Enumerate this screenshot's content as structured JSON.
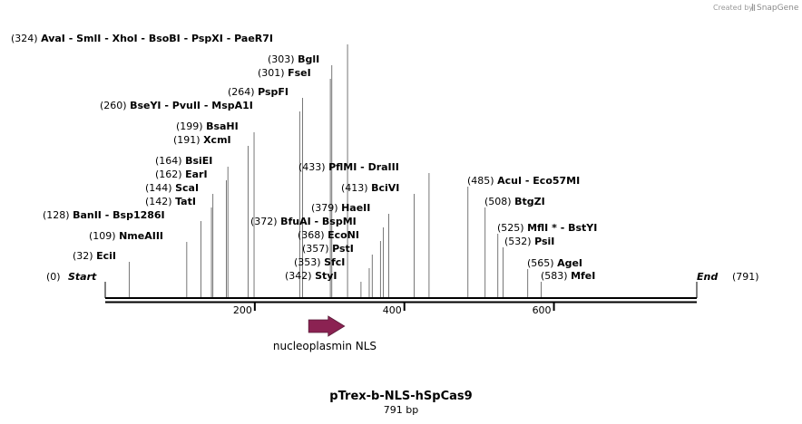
{
  "credit": {
    "prefix": "Created by",
    "brand": "SnapGene"
  },
  "map": {
    "name": "pTrex-b-NLS-hSpCas9",
    "length_label": "791 bp",
    "bp": 791,
    "start_label": "Start",
    "end_label": "End",
    "start_pos": "(0)",
    "end_pos": "(791)",
    "ticks": [
      {
        "bp": 200,
        "label": "200"
      },
      {
        "bp": 400,
        "label": "400"
      },
      {
        "bp": 600,
        "label": "600"
      }
    ],
    "feature": {
      "name": "nucleoplasmin NLS",
      "start_bp": 272,
      "end_bp": 320,
      "color": "#8b2252"
    },
    "sites": [
      {
        "pos": "(324)",
        "names": [
          "AvaI",
          "SmlI",
          "XhoI",
          "BsoBI",
          "PspXI",
          "PaeR7I"
        ],
        "bp": 324
      },
      {
        "pos": "(303)",
        "names": [
          "BglI"
        ],
        "bp": 303
      },
      {
        "pos": "(301)",
        "names": [
          "FseI"
        ],
        "bp": 301
      },
      {
        "pos": "(264)",
        "names": [
          "PspFI"
        ],
        "bp": 264
      },
      {
        "pos": "(260)",
        "names": [
          "BseYI",
          "PvuII",
          "MspA1I"
        ],
        "bp": 260
      },
      {
        "pos": "(199)",
        "names": [
          "BsaHI"
        ],
        "bp": 199
      },
      {
        "pos": "(191)",
        "names": [
          "XcmI"
        ],
        "bp": 191
      },
      {
        "pos": "(164)",
        "names": [
          "BsiEI"
        ],
        "bp": 164
      },
      {
        "pos": "(162)",
        "names": [
          "EarI"
        ],
        "bp": 162
      },
      {
        "pos": "(144)",
        "names": [
          "ScaI"
        ],
        "bp": 144
      },
      {
        "pos": "(142)",
        "names": [
          "TatI"
        ],
        "bp": 142
      },
      {
        "pos": "(128)",
        "names": [
          "BanII",
          "Bsp1286I"
        ],
        "bp": 128
      },
      {
        "pos": "(109)",
        "names": [
          "NmeAIII"
        ],
        "bp": 109
      },
      {
        "pos": "(32)",
        "names": [
          "EciI"
        ],
        "bp": 32
      },
      {
        "pos": "(433)",
        "names": [
          "PflMI",
          "DraIII"
        ],
        "bp": 433
      },
      {
        "pos": "(413)",
        "names": [
          "BciVI"
        ],
        "bp": 413
      },
      {
        "pos": "(379)",
        "names": [
          "HaeII"
        ],
        "bp": 379
      },
      {
        "pos": "(372)",
        "names": [
          "BfuAI",
          "BspMI"
        ],
        "bp": 372
      },
      {
        "pos": "(368)",
        "names": [
          "EcoNI"
        ],
        "bp": 368
      },
      {
        "pos": "(357)",
        "names": [
          "PstI"
        ],
        "bp": 357
      },
      {
        "pos": "(353)",
        "names": [
          "SfcI"
        ],
        "bp": 353
      },
      {
        "pos": "(342)",
        "names": [
          "StyI"
        ],
        "bp": 342
      },
      {
        "pos": "(485)",
        "names": [
          "AcuI",
          "Eco57MI"
        ],
        "bp": 485
      },
      {
        "pos": "(508)",
        "names": [
          "BtgZI"
        ],
        "bp": 508
      },
      {
        "pos": "(525)",
        "names": [
          "MflI *",
          "BstYI"
        ],
        "bp": 525
      },
      {
        "pos": "(532)",
        "names": [
          "PsiI"
        ],
        "bp": 532
      },
      {
        "pos": "(565)",
        "names": [
          "AgeI"
        ],
        "bp": 565
      },
      {
        "pos": "(583)",
        "names": [
          "MfeI"
        ],
        "bp": 583
      }
    ]
  }
}
